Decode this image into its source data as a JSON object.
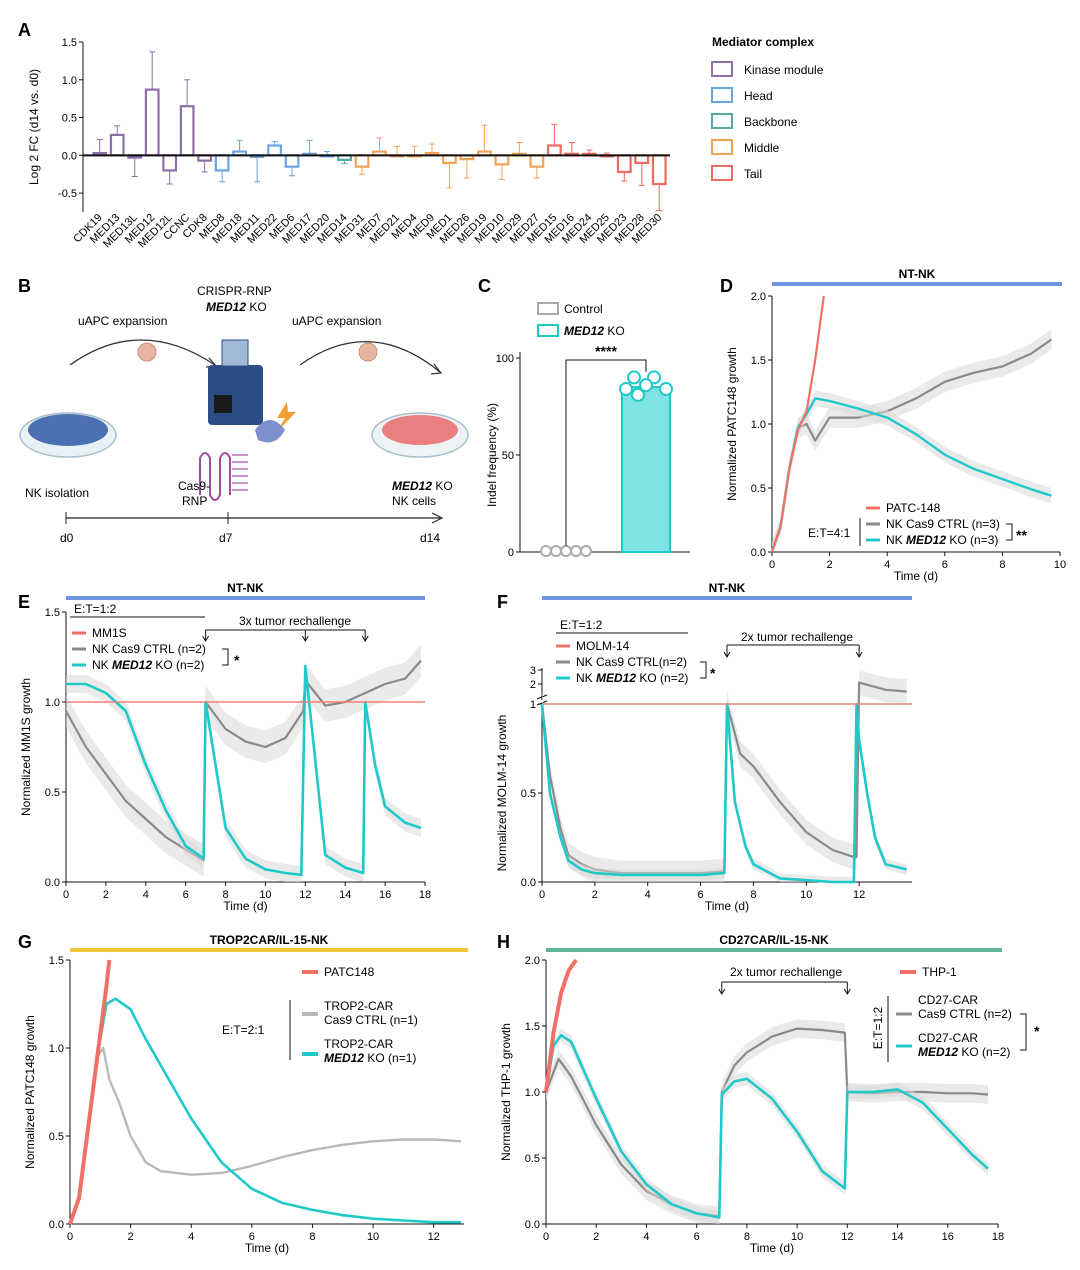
{
  "panel_labels": {
    "A": "A",
    "B": "B",
    "C": "C",
    "D": "D",
    "E": "E",
    "F": "F",
    "G": "G",
    "H": "H"
  },
  "colors": {
    "kinase": "#8f6fa8",
    "head": "#6aa3e0",
    "backbone": "#52a9a6",
    "middle": "#f2a257",
    "tail": "#ec6a5e",
    "teal": "#20c9c9",
    "gray": "#8a8a8a",
    "lightgray": "#b9b9b9",
    "red": "#f07066",
    "blueBar": "#6f97e0",
    "yellowBar": "#f2c83a",
    "greenBar": "#5cb59a",
    "redline": "#f08080"
  },
  "panelB": {
    "step1": "uAPC expansion",
    "step2": "uAPC expansion",
    "crispr_line1": "CRISPR-RNP",
    "crispr_gene": "MED12",
    "crispr_ko": " KO",
    "cas9": "Cas9-",
    "rnp": "RNP",
    "nk_isolation": "NK isolation",
    "out_gene": "MED12",
    "out_ko": " KO",
    "out_cells": "NK cells",
    "t0": "d0",
    "t1": "d7",
    "t2": "d14"
  },
  "chart_data": [
    {
      "id": "A",
      "type": "bar",
      "title": "",
      "ylabel": "Log 2 FC (d14 vs. d0)",
      "ylim": [
        -0.75,
        1.5
      ],
      "yticks": [
        -0.5,
        0.0,
        0.5,
        1.0,
        1.5
      ],
      "ytick_labels": [
        "-0.5",
        "0.0",
        "0.5",
        "1.0",
        "1.5"
      ],
      "legend_title": "Mediator complex",
      "legend": [
        {
          "name": "Kinase module",
          "group": "kinase"
        },
        {
          "name": "Head",
          "group": "head"
        },
        {
          "name": "Backbone",
          "group": "backbone"
        },
        {
          "name": "Middle",
          "group": "middle"
        },
        {
          "name": "Tail",
          "group": "tail"
        }
      ],
      "categories": [
        "CDK19",
        "MED13",
        "MED13L",
        "MED12",
        "MED12L",
        "CCNC",
        "CDK8",
        "MED8",
        "MED18",
        "MED11",
        "MED22",
        "MED6",
        "MED17",
        "MED20",
        "MED14",
        "MED31",
        "MED7",
        "MED21",
        "MED4",
        "MED9",
        "MED1",
        "MED26",
        "MED19",
        "MED10",
        "MED29",
        "MED27",
        "MED15",
        "MED16",
        "MED24",
        "MED25",
        "MED23",
        "MED28",
        "MED30"
      ],
      "groups": [
        "kinase",
        "kinase",
        "kinase",
        "kinase",
        "kinase",
        "kinase",
        "kinase",
        "head",
        "head",
        "head",
        "head",
        "head",
        "head",
        "head",
        "backbone",
        "middle",
        "middle",
        "middle",
        "middle",
        "middle",
        "middle",
        "middle",
        "middle",
        "middle",
        "middle",
        "middle",
        "tail",
        "tail",
        "tail",
        "tail",
        "tail",
        "tail",
        "tail"
      ],
      "values": [
        0.03,
        0.27,
        -0.03,
        0.87,
        -0.2,
        0.65,
        -0.07,
        -0.2,
        0.05,
        -0.02,
        0.13,
        -0.15,
        0.02,
        0.0,
        -0.06,
        -0.15,
        0.05,
        0.0,
        0.0,
        0.03,
        -0.1,
        -0.05,
        0.05,
        -0.12,
        0.02,
        -0.15,
        0.13,
        0.02,
        0.02,
        0.0,
        -0.22,
        -0.1,
        -0.38
      ],
      "errors": [
        0.18,
        0.12,
        0.25,
        0.5,
        0.18,
        0.35,
        0.15,
        0.15,
        0.15,
        0.33,
        0.05,
        0.12,
        0.18,
        0.05,
        0.05,
        0.1,
        0.18,
        0.12,
        0.12,
        0.12,
        0.33,
        0.25,
        0.35,
        0.2,
        0.15,
        0.15,
        0.28,
        0.15,
        0.05,
        0.03,
        0.12,
        0.3,
        0.35
      ]
    },
    {
      "id": "C",
      "type": "bar",
      "ylabel": "Indel frequency (%)",
      "ylim": [
        0,
        100
      ],
      "yticks": [
        0,
        50,
        100
      ],
      "ytick_labels": [
        "0",
        "50",
        "100"
      ],
      "legend": [
        {
          "name": "Control",
          "group": "ctrl"
        },
        {
          "name_gene": "MED12",
          "name_suffix": " KO",
          "group": "ko"
        }
      ],
      "values": [
        0,
        85
      ],
      "points": [
        [
          0,
          0,
          0,
          0,
          0
        ],
        [
          90,
          83,
          86,
          88,
          82,
          84
        ]
      ],
      "significance": "****"
    },
    {
      "id": "D",
      "type": "line",
      "title": "NT-NK",
      "xlabel": "Time (d)",
      "ylabel": "Normalized PATC148 growth",
      "xlim": [
        0,
        10
      ],
      "ylim": [
        0,
        2.0
      ],
      "xticks": [
        0,
        2,
        4,
        6,
        8,
        10
      ],
      "xtick_labels": [
        "0",
        "2",
        "4",
        "6",
        "8",
        "10"
      ],
      "yticks": [
        0,
        0.5,
        1.0,
        1.5,
        2.0
      ],
      "ytick_labels": [
        "0.0",
        "0.5",
        "1.0",
        "1.5",
        "2.0"
      ],
      "series": [
        {
          "name": "PATC-148",
          "color": "red",
          "x": [
            0,
            0.3,
            0.6,
            0.9,
            1.2,
            1.5,
            1.8
          ],
          "y": [
            0,
            0.2,
            0.65,
            0.95,
            1.1,
            1.5,
            2.0
          ]
        },
        {
          "name": "NK Cas9 CTRL (n=3)",
          "color": "gray",
          "x": [
            0,
            0.3,
            0.6,
            0.9,
            1.2,
            1.5,
            2,
            3,
            4,
            5,
            6,
            7,
            8,
            9,
            9.7
          ],
          "y": [
            0,
            0.2,
            0.65,
            0.97,
            1.0,
            0.87,
            1.05,
            1.05,
            1.1,
            1.2,
            1.33,
            1.4,
            1.45,
            1.55,
            1.66
          ]
        },
        {
          "name_prefix": "NK ",
          "name_gene": "MED12",
          "name_suffix": " KO (n=3)",
          "color": "teal",
          "x": [
            0,
            0.3,
            0.6,
            0.9,
            1.2,
            1.5,
            2,
            3,
            4,
            5,
            6,
            7,
            8,
            9,
            9.7
          ],
          "y": [
            0,
            0.2,
            0.65,
            0.97,
            1.08,
            1.2,
            1.18,
            1.12,
            1.05,
            0.92,
            0.76,
            0.65,
            0.57,
            0.49,
            0.44
          ]
        }
      ],
      "et_label": "E:T=4:1",
      "significance": "**"
    },
    {
      "id": "E",
      "type": "line",
      "title": "NT-NK",
      "xlabel": "Time (d)",
      "ylabel": "Normalized MM1S growth",
      "xlim": [
        0,
        18
      ],
      "ylim": [
        0,
        1.5
      ],
      "xticks": [
        0,
        2,
        4,
        6,
        8,
        10,
        12,
        14,
        16,
        18
      ],
      "xtick_labels": [
        "0",
        "2",
        "4",
        "6",
        "8",
        "10",
        "12",
        "14",
        "16",
        "18"
      ],
      "yticks": [
        0,
        0.5,
        1.0,
        1.5
      ],
      "ytick_labels": [
        "0.0",
        "0.5",
        "1.0",
        "1.5"
      ],
      "et_label": "E:T=1:2",
      "rechallenge": "3x tumor rechallenge",
      "rechallenge_days": [
        7,
        12,
        15
      ],
      "series": [
        {
          "name": "MM1S",
          "color": "red",
          "x": [
            0,
            18
          ],
          "y": [
            1.0,
            1.0
          ]
        },
        {
          "name": "NK Cas9 CTRL (n=2)",
          "color": "gray",
          "x": [
            0,
            1,
            2,
            3,
            4,
            5,
            6,
            6.9,
            7,
            8,
            9,
            10,
            11,
            11.9,
            12,
            13,
            14,
            15,
            16,
            17,
            17.8
          ],
          "y": [
            0.95,
            0.75,
            0.6,
            0.45,
            0.35,
            0.25,
            0.18,
            0.12,
            1.0,
            0.85,
            0.78,
            0.75,
            0.8,
            0.95,
            1.12,
            0.98,
            1.0,
            1.05,
            1.1,
            1.13,
            1.23
          ]
        },
        {
          "name_prefix": "NK ",
          "name_gene": "MED12",
          "name_suffix": " KO (n=2)",
          "color": "teal",
          "x": [
            0,
            1,
            2,
            3,
            4,
            5,
            6,
            6.9,
            7,
            8,
            9,
            10,
            11,
            11.8,
            12,
            13,
            14,
            14.9,
            15,
            15.5,
            16,
            17,
            17.8
          ],
          "y": [
            1.1,
            1.1,
            1.05,
            0.95,
            0.65,
            0.4,
            0.2,
            0.13,
            1.0,
            0.3,
            0.13,
            0.07,
            0.05,
            0.04,
            1.2,
            0.15,
            0.08,
            0.05,
            1.0,
            0.65,
            0.42,
            0.33,
            0.3
          ]
        }
      ],
      "significance": "*"
    },
    {
      "id": "F",
      "type": "line",
      "title": "NT-NK",
      "xlabel": "Time (d)",
      "ylabel": "Normalized MOLM-14 growth",
      "xlim": [
        0,
        14
      ],
      "ylim": [
        0,
        1.0
      ],
      "xticks": [
        0,
        2,
        4,
        6,
        8,
        10,
        12
      ],
      "xtick_labels": [
        "0",
        "2",
        "4",
        "6",
        "8",
        "10",
        "12"
      ],
      "yticks": [
        0,
        0.5,
        1.0
      ],
      "ytick_labels": [
        "0.0",
        "0.5",
        "1"
      ],
      "ybreak_labels": [
        "2",
        "3"
      ],
      "et_label": "E:T=1:2",
      "rechallenge": "2x tumor rechallenge",
      "rechallenge_days": [
        7,
        12
      ],
      "series": [
        {
          "name": "MOLM-14",
          "color": "red",
          "x": [
            0,
            14
          ],
          "y": [
            1.0,
            1.0
          ]
        },
        {
          "name": "NK Cas9 CTRL(n=2)",
          "color": "gray",
          "x": [
            0,
            0.3,
            0.7,
            1,
            1.5,
            2,
            3,
            4,
            5,
            6,
            6.9,
            7,
            7.5,
            8,
            9,
            10,
            11,
            11.8,
            11.9,
            12,
            13,
            13.8
          ],
          "y": [
            1.0,
            0.6,
            0.3,
            0.15,
            0.1,
            0.07,
            0.05,
            0.05,
            0.05,
            0.05,
            0.06,
            1.0,
            0.72,
            0.65,
            0.45,
            0.28,
            0.18,
            0.14,
            0.14,
            1.12,
            1.08,
            1.07
          ]
        },
        {
          "name_prefix": "NK ",
          "name_gene": "MED12",
          "name_suffix": " KO (n=2)",
          "color": "teal",
          "x": [
            0,
            0.3,
            0.7,
            1,
            1.5,
            2,
            3,
            4,
            5,
            6,
            6.9,
            7,
            7.3,
            7.7,
            8,
            9,
            10,
            11,
            11.8,
            11.9,
            12,
            12.3,
            12.6,
            13,
            13.8
          ],
          "y": [
            1.0,
            0.5,
            0.25,
            0.12,
            0.07,
            0.05,
            0.04,
            0.04,
            0.04,
            0.04,
            0.05,
            1.0,
            0.45,
            0.2,
            0.1,
            0.02,
            0.01,
            0.0,
            0.0,
            1.0,
            0.8,
            0.5,
            0.25,
            0.1,
            0.07
          ]
        }
      ],
      "significance": "*"
    },
    {
      "id": "G",
      "type": "line",
      "title": "TROP2CAR/IL-15-NK",
      "xlabel": "Time (d)",
      "ylabel": "Normalized PATC148 growth",
      "xlim": [
        0,
        13
      ],
      "ylim": [
        0,
        1.5
      ],
      "xticks": [
        0,
        2,
        4,
        6,
        8,
        10,
        12
      ],
      "xtick_labels": [
        "0",
        "2",
        "4",
        "6",
        "8",
        "10",
        "12"
      ],
      "yticks": [
        0,
        0.5,
        1.0,
        1.5
      ],
      "ytick_labels": [
        "0.0",
        "0.5",
        "1.0",
        "1.5"
      ],
      "et_label": "E:T=2:1",
      "series": [
        {
          "name": "PATC148",
          "color": "red",
          "x": [
            0,
            0.3,
            0.6,
            0.9,
            1.2,
            1.3
          ],
          "y": [
            0,
            0.15,
            0.55,
            0.95,
            1.35,
            1.5
          ]
        },
        {
          "name_line1": "TROP2-CAR",
          "name_line2": "Cas9 CTRL (n=1)",
          "color": "lightgray",
          "x": [
            0,
            0.3,
            0.6,
            0.9,
            1.1,
            1.3,
            1.6,
            2,
            2.5,
            3,
            4,
            5,
            6,
            7,
            8,
            9,
            10,
            11,
            12,
            12.9
          ],
          "y": [
            0,
            0.15,
            0.55,
            0.95,
            1.0,
            0.82,
            0.7,
            0.5,
            0.35,
            0.3,
            0.28,
            0.29,
            0.33,
            0.38,
            0.42,
            0.45,
            0.47,
            0.48,
            0.48,
            0.47
          ]
        },
        {
          "name_line1": "TROP2-CAR",
          "name_gene": "MED12",
          "name_suffix": " KO (n=1)",
          "color": "teal",
          "x": [
            0,
            0.3,
            0.6,
            0.9,
            1.2,
            1.5,
            2,
            2.5,
            3,
            4,
            5,
            6,
            7,
            8,
            9,
            10,
            11,
            12,
            12.9
          ],
          "y": [
            0,
            0.15,
            0.55,
            0.95,
            1.25,
            1.28,
            1.22,
            1.05,
            0.9,
            0.6,
            0.35,
            0.2,
            0.12,
            0.08,
            0.05,
            0.03,
            0.02,
            0.01,
            0.01
          ]
        }
      ]
    },
    {
      "id": "H",
      "type": "line",
      "title": "CD27CAR/IL-15-NK",
      "xlabel": "Time (d)",
      "ylabel": "Normalized THP-1 growth",
      "xlim": [
        0,
        18
      ],
      "ylim": [
        0,
        2.0
      ],
      "xticks": [
        0,
        2,
        4,
        6,
        8,
        10,
        12,
        14,
        16,
        18
      ],
      "xtick_labels": [
        "0",
        "2",
        "4",
        "6",
        "8",
        "10",
        "12",
        "14",
        "16",
        "18"
      ],
      "yticks": [
        0,
        0.5,
        1.0,
        1.5,
        2.0
      ],
      "ytick_labels": [
        "0.0",
        "0.5",
        "1.0",
        "1.5",
        "2.0"
      ],
      "et_label": "E:T=1:2",
      "rechallenge": "2x tumor rechallenge",
      "rechallenge_days": [
        7,
        12
      ],
      "series": [
        {
          "name": "THP-1",
          "color": "red",
          "x": [
            0,
            0.3,
            0.6,
            0.9,
            1.2
          ],
          "y": [
            1.0,
            1.45,
            1.75,
            1.92,
            2.0
          ]
        },
        {
          "name_line1": "CD27-CAR",
          "name_line2": "Cas9 CTRL (n=2)",
          "color": "gray",
          "x": [
            0,
            0.5,
            1,
            2,
            3,
            4,
            5,
            6,
            6.9,
            7,
            7.5,
            8,
            9,
            10,
            11,
            11.9,
            12,
            13,
            14,
            15,
            16,
            17,
            17.6
          ],
          "y": [
            1.0,
            1.25,
            1.12,
            0.75,
            0.45,
            0.25,
            0.15,
            0.08,
            0.06,
            1.0,
            1.2,
            1.3,
            1.42,
            1.48,
            1.47,
            1.45,
            1.0,
            0.99,
            1.0,
            1.0,
            0.99,
            0.99,
            0.98
          ]
        },
        {
          "name_line1": "CD27-CAR",
          "name_gene": "MED12",
          "name_suffix": " KO (n=2)",
          "color": "teal",
          "x": [
            0,
            0.3,
            0.6,
            1,
            2,
            3,
            4,
            5,
            6,
            6.9,
            7,
            7.5,
            8,
            9,
            10,
            11,
            11.9,
            12,
            13,
            14,
            15,
            16,
            17,
            17.6
          ],
          "y": [
            1.0,
            1.35,
            1.43,
            1.38,
            0.95,
            0.55,
            0.3,
            0.15,
            0.08,
            0.05,
            0.98,
            1.08,
            1.1,
            0.95,
            0.7,
            0.4,
            0.27,
            1.0,
            1.0,
            1.02,
            0.92,
            0.72,
            0.52,
            0.42
          ]
        }
      ],
      "significance": "*"
    }
  ]
}
